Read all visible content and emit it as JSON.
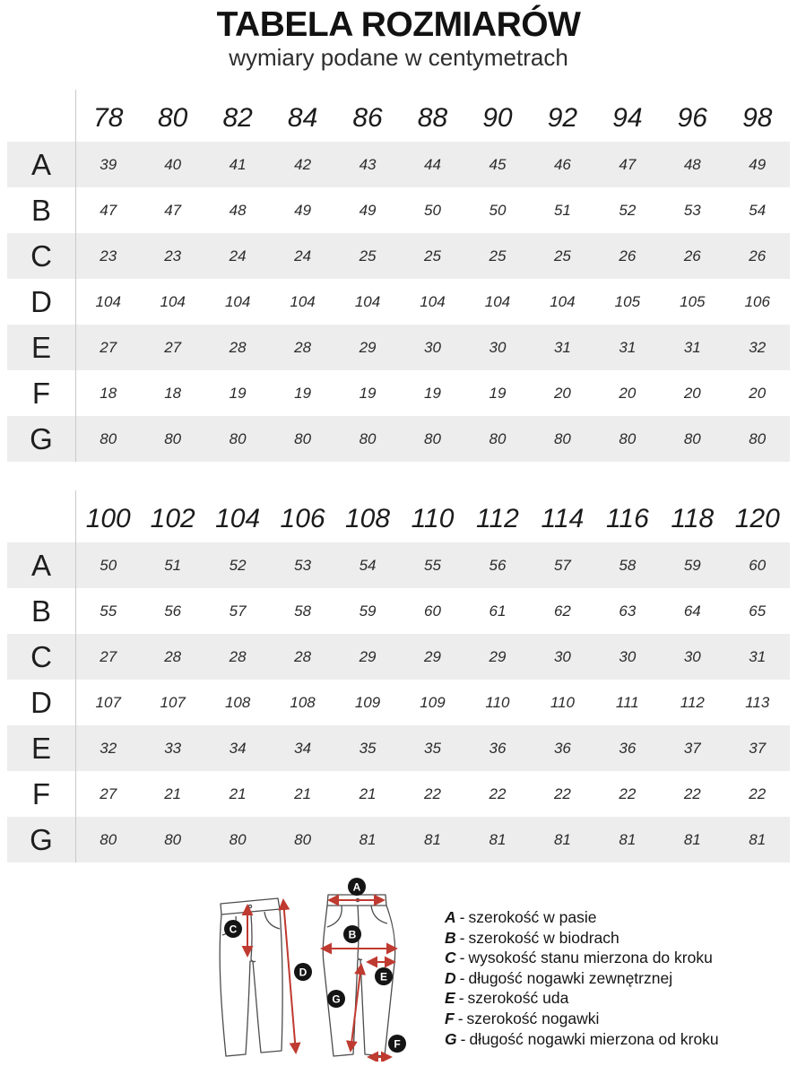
{
  "title": "TABELA ROZMIARÓW",
  "subtitle": "wymiary podane w centymetrach",
  "colors": {
    "accent_red": "#bf3a30",
    "stripe_gray": "#ededed",
    "text_dark": "#1d1d1d"
  },
  "tables": [
    {
      "sizes": [
        "78",
        "80",
        "82",
        "84",
        "86",
        "88",
        "90",
        "92",
        "94",
        "96",
        "98"
      ],
      "rows": [
        {
          "label": "A",
          "values": [
            "39",
            "40",
            "41",
            "42",
            "43",
            "44",
            "45",
            "46",
            "47",
            "48",
            "49"
          ]
        },
        {
          "label": "B",
          "values": [
            "47",
            "47",
            "48",
            "49",
            "49",
            "50",
            "50",
            "51",
            "52",
            "53",
            "54"
          ]
        },
        {
          "label": "C",
          "values": [
            "23",
            "23",
            "24",
            "24",
            "25",
            "25",
            "25",
            "25",
            "26",
            "26",
            "26"
          ]
        },
        {
          "label": "D",
          "values": [
            "104",
            "104",
            "104",
            "104",
            "104",
            "104",
            "104",
            "104",
            "105",
            "105",
            "106"
          ]
        },
        {
          "label": "E",
          "values": [
            "27",
            "27",
            "28",
            "28",
            "29",
            "30",
            "30",
            "31",
            "31",
            "31",
            "32"
          ]
        },
        {
          "label": "F",
          "values": [
            "18",
            "18",
            "19",
            "19",
            "19",
            "19",
            "19",
            "20",
            "20",
            "20",
            "20"
          ]
        },
        {
          "label": "G",
          "values": [
            "80",
            "80",
            "80",
            "80",
            "80",
            "80",
            "80",
            "80",
            "80",
            "80",
            "80"
          ]
        }
      ]
    },
    {
      "sizes": [
        "100",
        "102",
        "104",
        "106",
        "108",
        "110",
        "112",
        "114",
        "116",
        "118",
        "120"
      ],
      "rows": [
        {
          "label": "A",
          "values": [
            "50",
            "51",
            "52",
            "53",
            "54",
            "55",
            "56",
            "57",
            "58",
            "59",
            "60"
          ]
        },
        {
          "label": "B",
          "values": [
            "55",
            "56",
            "57",
            "58",
            "59",
            "60",
            "61",
            "62",
            "63",
            "64",
            "65"
          ]
        },
        {
          "label": "C",
          "values": [
            "27",
            "28",
            "28",
            "28",
            "29",
            "29",
            "29",
            "30",
            "30",
            "30",
            "31"
          ]
        },
        {
          "label": "D",
          "values": [
            "107",
            "107",
            "108",
            "108",
            "109",
            "109",
            "110",
            "110",
            "111",
            "112",
            "113"
          ]
        },
        {
          "label": "E",
          "values": [
            "32",
            "33",
            "34",
            "34",
            "35",
            "35",
            "36",
            "36",
            "36",
            "37",
            "37"
          ]
        },
        {
          "label": "F",
          "values": [
            "27",
            "21",
            "21",
            "21",
            "21",
            "22",
            "22",
            "22",
            "22",
            "22",
            "22"
          ]
        },
        {
          "label": "G",
          "values": [
            "80",
            "80",
            "80",
            "80",
            "81",
            "81",
            "81",
            "81",
            "81",
            "81",
            "81"
          ]
        }
      ]
    }
  ],
  "legend": {
    "separator": "-",
    "items": [
      {
        "key": "A",
        "text": "szerokość w pasie"
      },
      {
        "key": "B",
        "text": "szerokość w biodrach"
      },
      {
        "key": "C",
        "text": "wysokość stanu mierzona do kroku"
      },
      {
        "key": "D",
        "text": "długość nogawki zewnętrznej"
      },
      {
        "key": "E",
        "text": "szerokość uda"
      },
      {
        "key": "F",
        "text": "szerokość nogawki"
      },
      {
        "key": "G",
        "text": "długość nogawki mierzona od kroku"
      }
    ]
  },
  "diagram": {
    "markers": [
      "A",
      "B",
      "C",
      "D",
      "E",
      "F",
      "G"
    ]
  }
}
